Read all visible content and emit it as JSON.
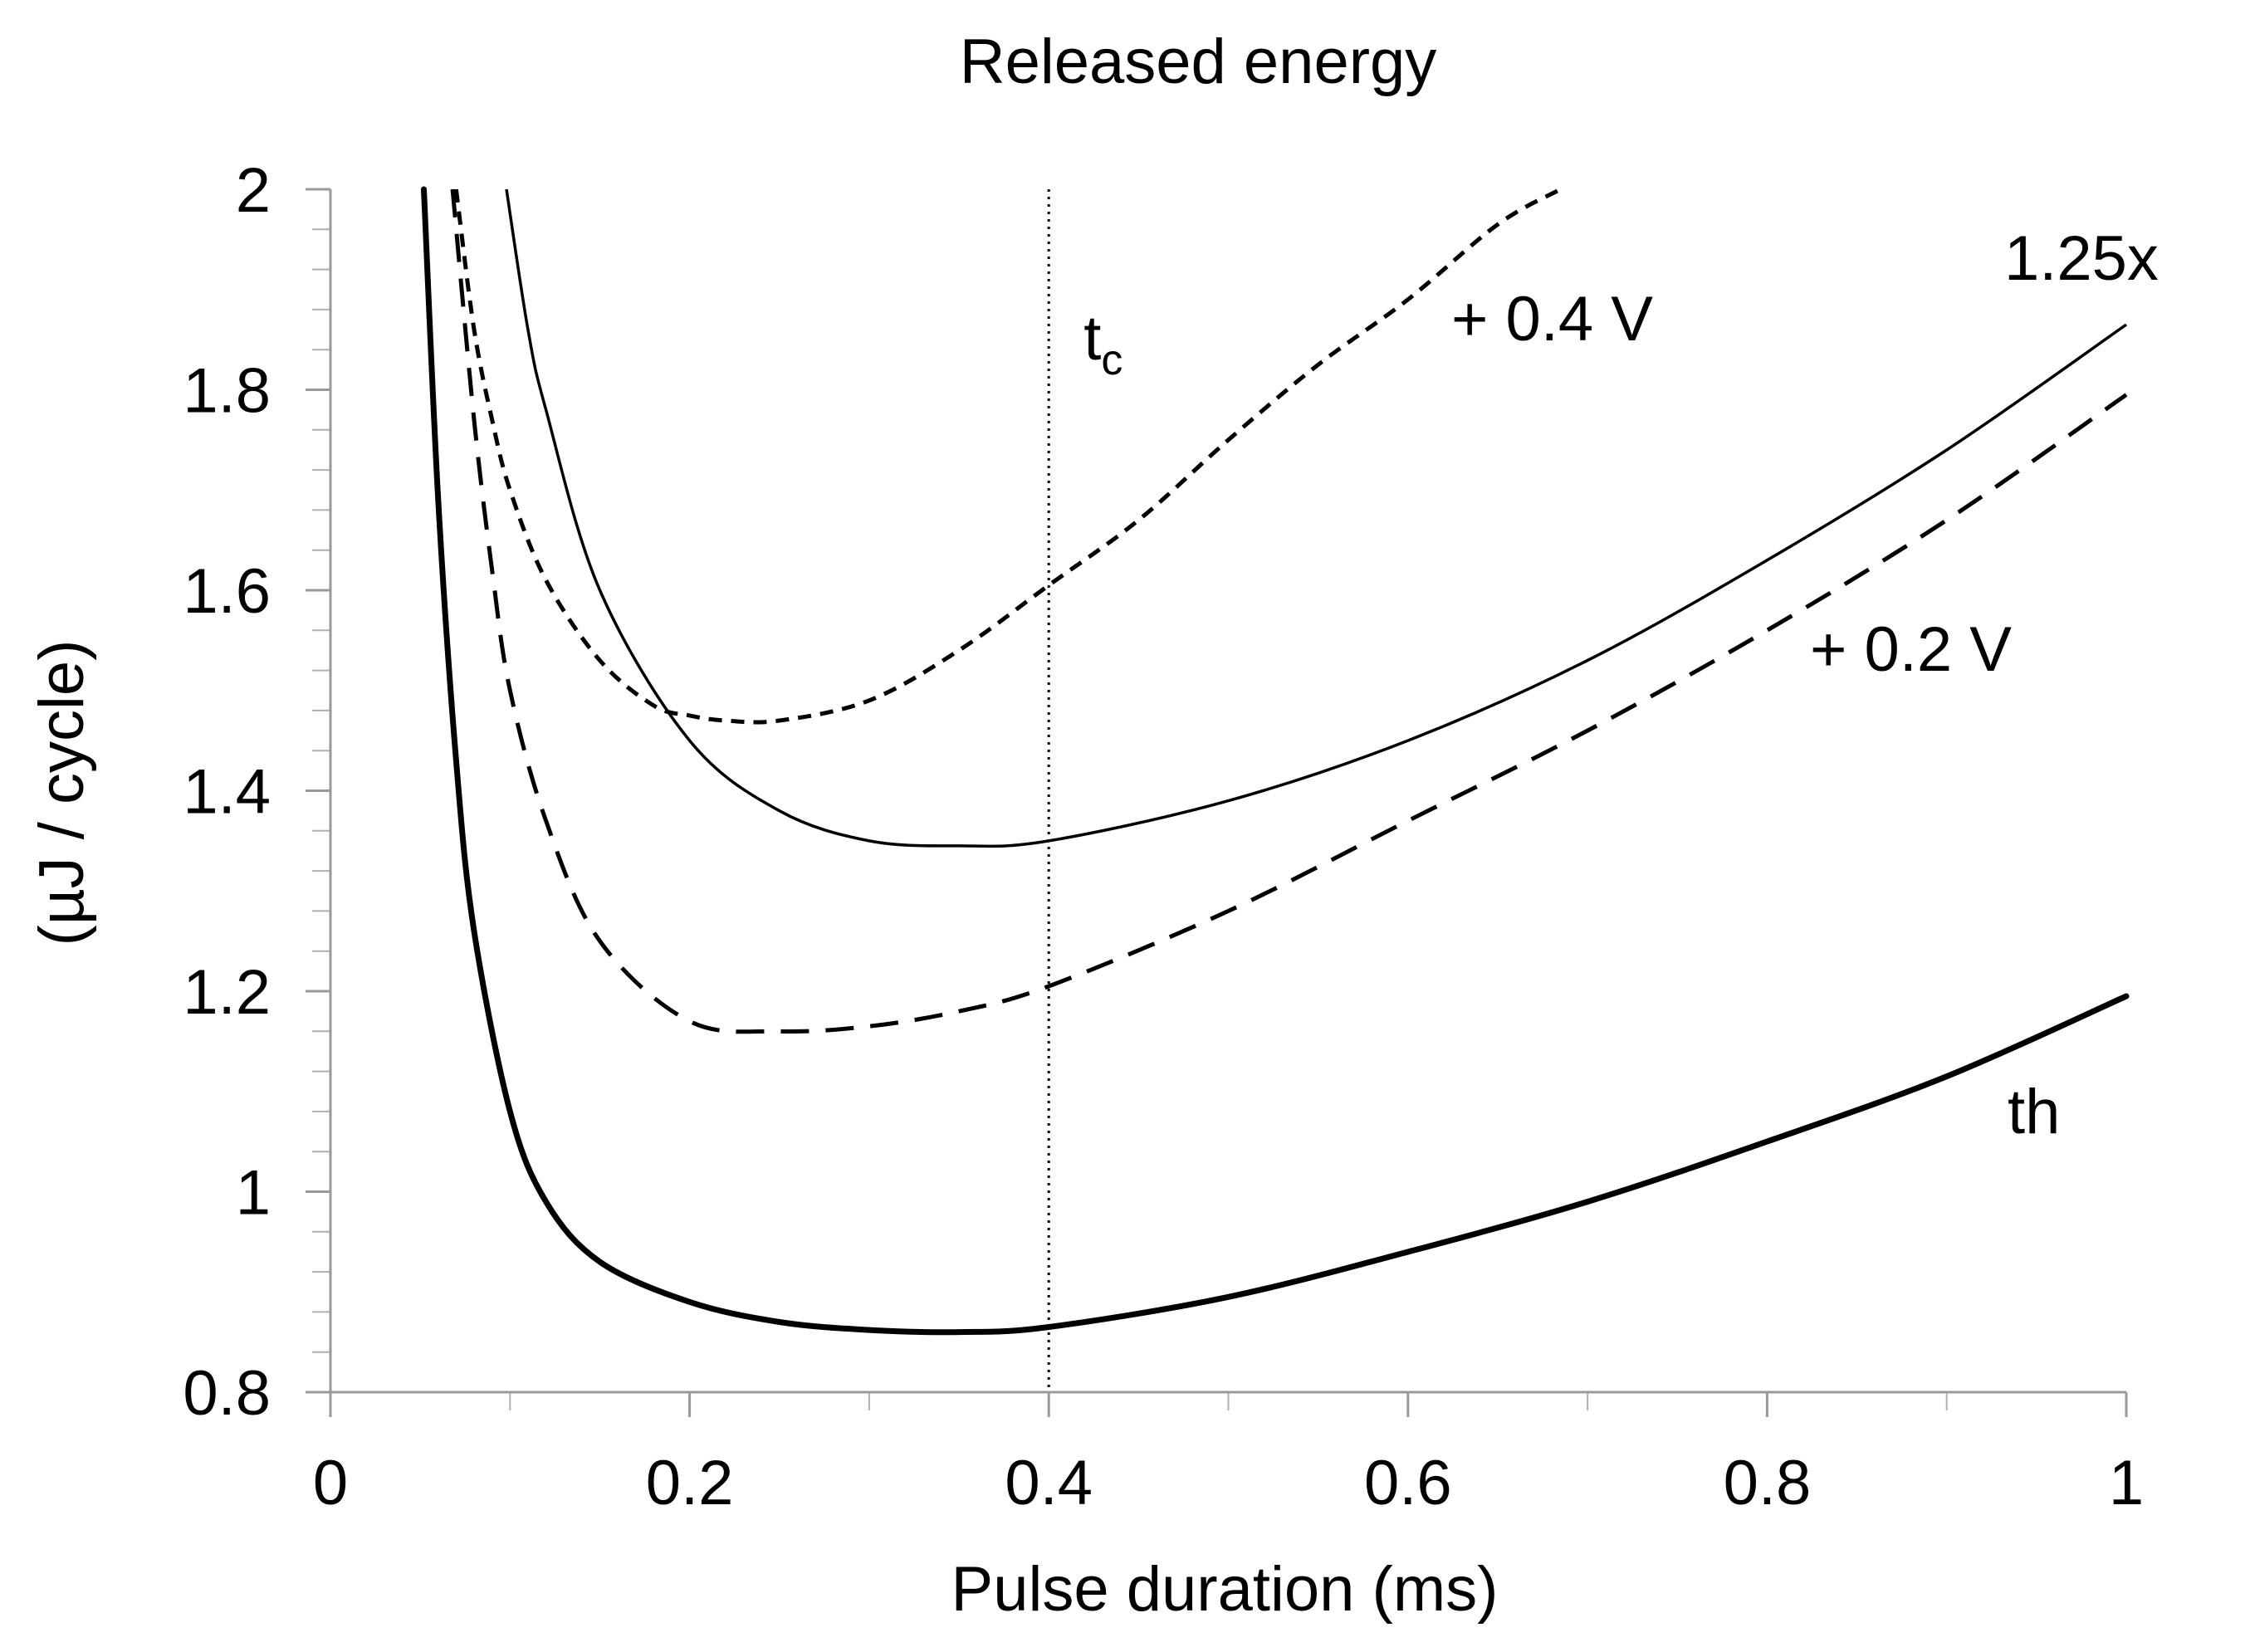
{
  "chart_data": {
    "type": "line",
    "title": "Released energy",
    "xlabel": "Pulse duration (ms)",
    "ylabel": "(µJ / cycle)",
    "xlim": [
      0,
      1
    ],
    "ylim": [
      0.8,
      2
    ],
    "x_ticks": [
      "0",
      "0.2",
      "0.4",
      "0.6",
      "0.8",
      "1"
    ],
    "y_ticks": [
      "0.8",
      "1",
      "1.2",
      "1.4",
      "1.6",
      "1.8",
      "2"
    ],
    "vline": {
      "x": 0.4,
      "label_main": "t",
      "label_sub": "c",
      "style": "dotted"
    },
    "series": [
      {
        "name": "th",
        "style": "solid-thick",
        "x": [
          0.052,
          0.06,
          0.07,
          0.08,
          0.1,
          0.12,
          0.15,
          0.2,
          0.25,
          0.3,
          0.35,
          0.4,
          0.5,
          0.6,
          0.7,
          0.8,
          0.9,
          1.0
        ],
        "y": [
          2.0,
          1.69,
          1.43,
          1.26,
          1.08,
          0.99,
          0.93,
          0.89,
          0.87,
          0.862,
          0.86,
          0.865,
          0.895,
          0.94,
          0.99,
          1.05,
          1.115,
          1.195
        ]
      },
      {
        "name": "1.25x",
        "style": "solid-thin",
        "x": [
          0.098,
          0.11,
          0.12,
          0.15,
          0.2,
          0.25,
          0.3,
          0.35,
          0.4,
          0.5,
          0.6,
          0.7,
          0.8,
          0.9,
          1.0
        ],
        "y": [
          2.0,
          1.86,
          1.78,
          1.6,
          1.45,
          1.38,
          1.35,
          1.345,
          1.35,
          1.39,
          1.45,
          1.53,
          1.63,
          1.74,
          1.865
        ]
      },
      {
        "name": "+ 0.2 V",
        "style": "dashed",
        "x": [
          0.068,
          0.08,
          0.09,
          0.1,
          0.12,
          0.15,
          0.2,
          0.25,
          0.3,
          0.35,
          0.4,
          0.5,
          0.6,
          0.7,
          0.8,
          0.9,
          1.0
        ],
        "y": [
          2.0,
          1.77,
          1.62,
          1.5,
          1.37,
          1.25,
          1.17,
          1.16,
          1.165,
          1.18,
          1.205,
          1.28,
          1.37,
          1.46,
          1.56,
          1.67,
          1.795
        ]
      },
      {
        "name": "+ 0.4 V",
        "style": "short-dashed",
        "x": [
          0.07,
          0.08,
          0.09,
          0.1,
          0.12,
          0.15,
          0.18,
          0.2,
          0.22,
          0.25,
          0.3,
          0.35,
          0.4,
          0.45,
          0.5,
          0.55,
          0.6,
          0.65,
          0.685
        ],
        "y": [
          2.0,
          1.86,
          1.77,
          1.7,
          1.61,
          1.53,
          1.485,
          1.475,
          1.47,
          1.47,
          1.49,
          1.54,
          1.605,
          1.67,
          1.75,
          1.825,
          1.89,
          1.965,
          2.0
        ]
      }
    ],
    "annotations": [
      {
        "text": "1.25x",
        "series": "1.25x"
      },
      {
        "text": "+ 0.4 V",
        "series": "+ 0.4 V"
      },
      {
        "text": "+ 0.2 V",
        "series": "+ 0.2 V"
      },
      {
        "text": "th",
        "series": "th"
      }
    ]
  }
}
